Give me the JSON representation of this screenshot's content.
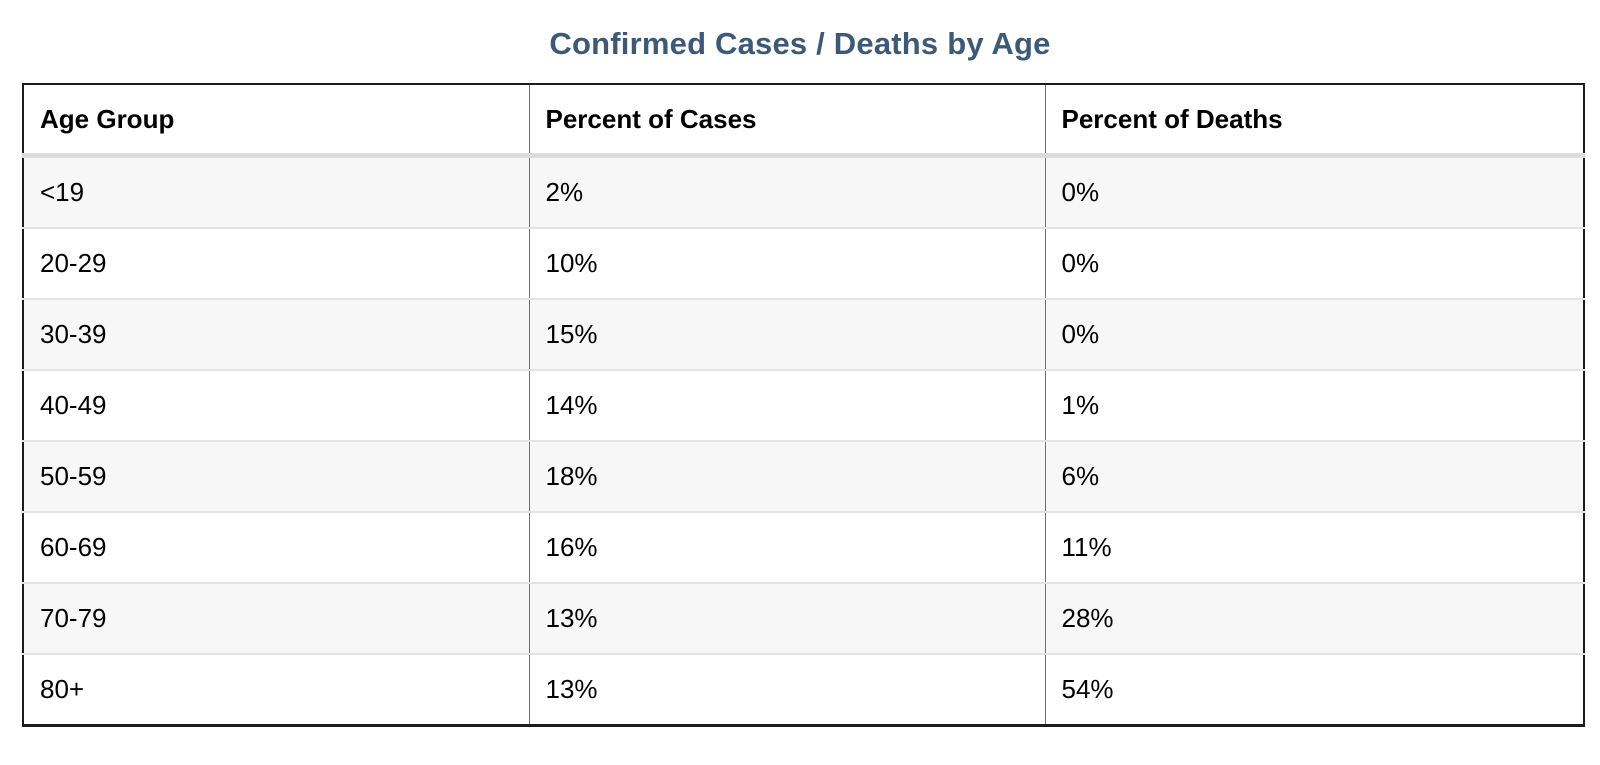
{
  "page": {
    "title": "Confirmed Cases / Deaths by Age"
  },
  "table": {
    "headers": [
      "Age Group",
      "Percent of Cases",
      "Percent of Deaths"
    ],
    "rows": [
      [
        "<19",
        "2%",
        "0%"
      ],
      [
        "20-29",
        "10%",
        "0%"
      ],
      [
        "30-39",
        "15%",
        "0%"
      ],
      [
        "40-49",
        "14%",
        "1%"
      ],
      [
        "50-59",
        "18%",
        "6%"
      ],
      [
        "60-69",
        "16%",
        "11%"
      ],
      [
        "70-79",
        "13%",
        "28%"
      ],
      [
        "80+",
        "13%",
        "54%"
      ]
    ]
  },
  "colors": {
    "title_text": "#3c5a77",
    "header_text": "#000000",
    "cell_text": "#000000",
    "row_stripe": "#f7f7f7",
    "row_plain": "#ffffff",
    "outer_border": "#1c1c1c",
    "column_separator": "#6f6f6f",
    "row_separator": "#e3e3e3",
    "header_bottom_band": "#dcdcdc"
  },
  "chart_data": {
    "type": "table",
    "title": "Confirmed Cases / Deaths by Age",
    "categories": [
      "<19",
      "20-29",
      "30-39",
      "40-49",
      "50-59",
      "60-69",
      "70-79",
      "80+"
    ],
    "series": [
      {
        "name": "Percent of Cases",
        "values": [
          2,
          10,
          15,
          14,
          18,
          16,
          13,
          13
        ]
      },
      {
        "name": "Percent of Deaths",
        "values": [
          0,
          0,
          0,
          1,
          6,
          11,
          28,
          54
        ]
      }
    ]
  }
}
